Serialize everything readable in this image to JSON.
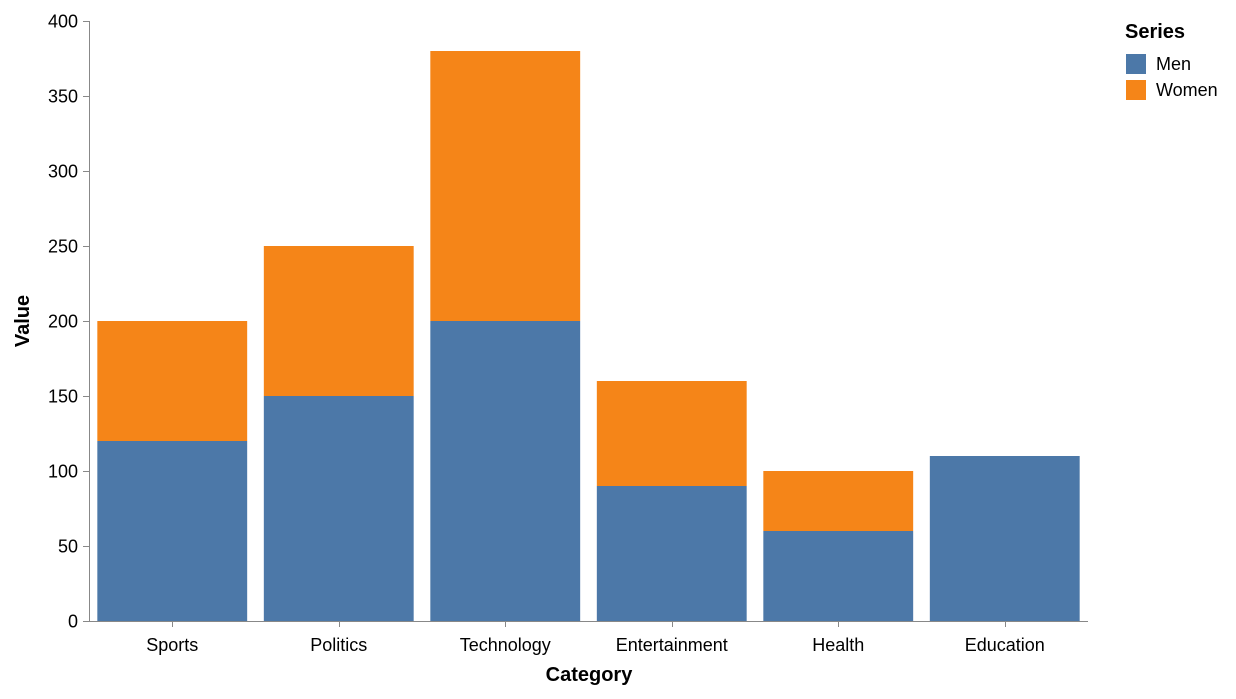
{
  "chart_data": {
    "type": "bar",
    "stacked": true,
    "categories": [
      "Sports",
      "Politics",
      "Technology",
      "Entertainment",
      "Health",
      "Education"
    ],
    "series": [
      {
        "name": "Men",
        "values": [
          120,
          150,
          200,
          90,
          60,
          110
        ],
        "color": "#4c78a8"
      },
      {
        "name": "Women",
        "values": [
          80,
          100,
          180,
          70,
          40,
          0
        ],
        "color": "#f58518"
      }
    ],
    "xlabel": "Category",
    "ylabel": "Value",
    "ylim": [
      0,
      400
    ],
    "yticks": [
      0,
      50,
      100,
      150,
      200,
      250,
      300,
      350,
      400
    ],
    "grid": false,
    "legend": {
      "title": "Series",
      "position": "top-right"
    }
  }
}
